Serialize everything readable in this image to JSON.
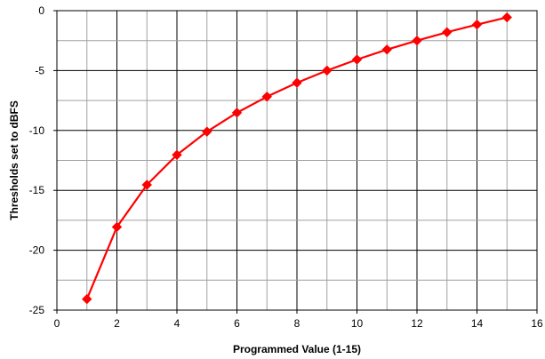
{
  "chart_data": {
    "type": "line",
    "xlabel": "Programmed Value (1-15)",
    "ylabel": "Thresholds set to dBFS",
    "xlim": [
      0,
      16
    ],
    "ylim": [
      -25,
      0
    ],
    "x_ticks": [
      0,
      2,
      4,
      6,
      8,
      10,
      12,
      14,
      16
    ],
    "y_ticks": [
      0,
      -5,
      -10,
      -15,
      -20,
      -25
    ],
    "x_minor_step": 1,
    "y_minor_step": 2.5,
    "grid": true,
    "legend": "none",
    "series": [
      {
        "color": "#ff0000",
        "marker": "diamond",
        "x": [
          1,
          2,
          3,
          4,
          5,
          6,
          7,
          8,
          9,
          10,
          11,
          12,
          13,
          14,
          15
        ],
        "y": [
          -24.08,
          -18.06,
          -14.54,
          -12.04,
          -10.1,
          -8.52,
          -7.18,
          -6.02,
          -5.0,
          -4.08,
          -3.25,
          -2.5,
          -1.8,
          -1.16,
          -0.56
        ]
      }
    ]
  }
}
